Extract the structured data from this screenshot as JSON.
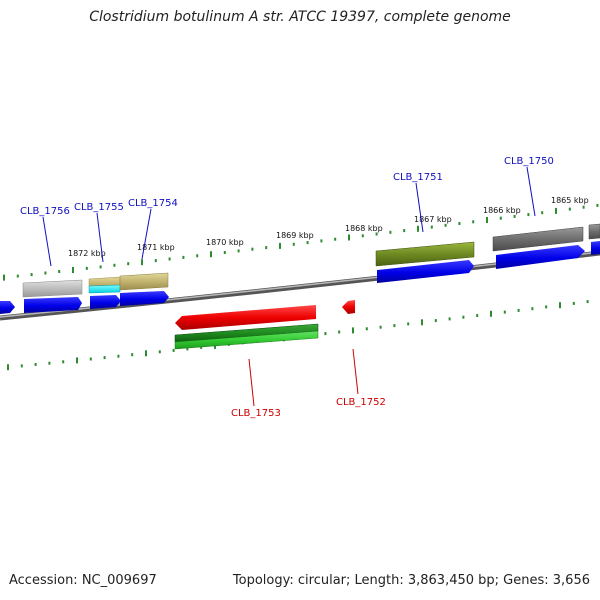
{
  "title": "Clostridium botulinum A str. ATCC 19397, complete genome",
  "footer": {
    "accession": "Accession: NC_009697",
    "summary": "Topology: circular; Length: 3,863,450 bp; Genes: 3,656"
  },
  "colors": {
    "backbone": "#8a8a8a",
    "ticks": "#2e8b2e",
    "forward_label": "#1010c0",
    "reverse_label": "#cc0000",
    "cds_forward": "#0000ee",
    "cds_reverse_red": "#ee0000",
    "cds_reverse_green": "#22aa22"
  },
  "scale_labels": [
    "1872 kbp",
    "1871 kbp",
    "1870 kbp",
    "1869 kbp",
    "1868 kbp",
    "1867 kbp",
    "1866 kbp",
    "1865 kbp"
  ],
  "gene_labels": [
    {
      "name": "CLB_1756",
      "strand": "forward"
    },
    {
      "name": "CLB_1755",
      "strand": "forward"
    },
    {
      "name": "CLB_1754",
      "strand": "forward"
    },
    {
      "name": "CLB_1751",
      "strand": "forward"
    },
    {
      "name": "CLB_1750",
      "strand": "forward"
    },
    {
      "name": "CLB_1753",
      "strand": "reverse"
    },
    {
      "name": "CLB_1752",
      "strand": "reverse"
    }
  ]
}
